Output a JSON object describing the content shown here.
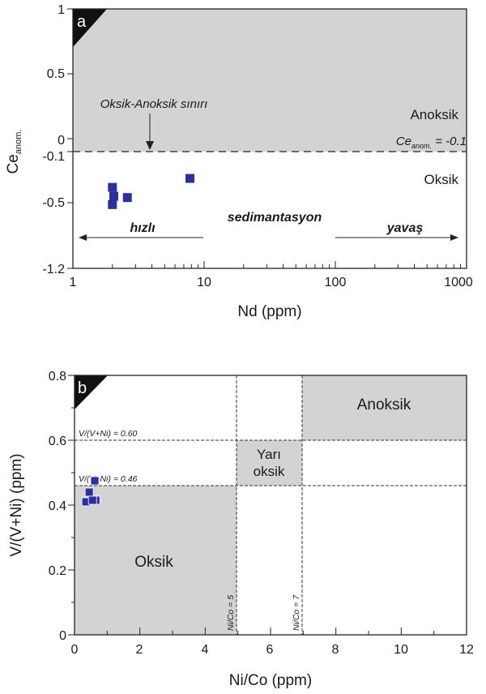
{
  "chart_data": [
    {
      "type": "scatter",
      "panel_label": "a",
      "xlabel": "Nd (ppm)",
      "ylabel_main": "Ce",
      "ylabel_sub": "anom.",
      "xscale": "log",
      "xlim": [
        1,
        1000
      ],
      "ylim": [
        -1.2,
        1
      ],
      "x_ticks": [
        1,
        10,
        100,
        1000
      ],
      "x_tick_labels": [
        "1",
        "10",
        "100",
        "1000"
      ],
      "y_ticks": [
        1,
        0.5,
        0,
        -0.1,
        -0.5,
        -1.2
      ],
      "y_tick_labels": [
        "1",
        "0.5",
        "0",
        "-0.1",
        "-0.5",
        "-1.2"
      ],
      "threshold_y": -0.1,
      "regions": [
        {
          "name": "Anoksik",
          "y_range": [
            -0.1,
            1
          ],
          "color": "#d3d3d3"
        },
        {
          "name": "Oksik",
          "y_range": [
            -1.2,
            -0.1
          ],
          "color": "#ffffff"
        }
      ],
      "annotations": {
        "boundary_label": "Oksik-Anoksik sınırı",
        "threshold_main": "Ce",
        "threshold_sub": "anom.",
        "threshold_value": " = -0.1",
        "fast": "hızlı",
        "sedimentation": "sedimantasyon",
        "slow": "yavaş"
      },
      "series": [
        {
          "x": [
            2.0,
            2.05,
            2.0,
            2.6,
            7.8
          ],
          "y": [
            -0.38,
            -0.45,
            -0.52,
            -0.46,
            -0.31
          ],
          "marker": "square",
          "color": "#2b2fa0"
        }
      ]
    },
    {
      "type": "scatter",
      "panel_label": "b",
      "xlabel": "Ni/Co (ppm)",
      "ylabel": "V/(V+Ni) (ppm)",
      "xlim": [
        0,
        12
      ],
      "ylim": [
        0,
        0.8
      ],
      "x_ticks": [
        0,
        2,
        4,
        6,
        8,
        10,
        12
      ],
      "x_tick_labels": [
        "0",
        "2",
        "4",
        "6",
        "8",
        "10",
        "12"
      ],
      "y_ticks": [
        0,
        0.2,
        0.4,
        0.6,
        0.8
      ],
      "y_tick_labels": [
        "0",
        "0.2",
        "0.4",
        "0.6",
        "0.8"
      ],
      "thresholds": {
        "h1": {
          "y": 0.6,
          "label": "V/(V+Ni) = 0.60"
        },
        "h2": {
          "y": 0.46,
          "label": "V/(V+Ni) = 0.46"
        },
        "v1": {
          "x": 5,
          "label": "Ni/Co = 5"
        },
        "v2": {
          "x": 7,
          "label": "Ni/Co = 7"
        }
      },
      "regions": [
        {
          "name": "Anoksik",
          "x_range": [
            7,
            12
          ],
          "y_range": [
            0.6,
            0.8
          ],
          "color": "#d3d3d3"
        },
        {
          "name": "Yarı oksik",
          "label_line1": "Yarı",
          "label_line2": "oksik",
          "x_range": [
            5,
            7
          ],
          "y_range": [
            0.46,
            0.6
          ],
          "color": "#d3d3d3"
        },
        {
          "name": "Oksik",
          "x_range": [
            0,
            5
          ],
          "y_range": [
            0,
            0.46
          ],
          "color": "#d3d3d3"
        }
      ],
      "series": [
        {
          "x": [
            0.62,
            0.45,
            0.35,
            0.65,
            0.55
          ],
          "y": [
            0.475,
            0.44,
            0.41,
            0.415,
            0.415
          ],
          "marker": "square",
          "color": "#2b2fa0"
        }
      ]
    }
  ]
}
